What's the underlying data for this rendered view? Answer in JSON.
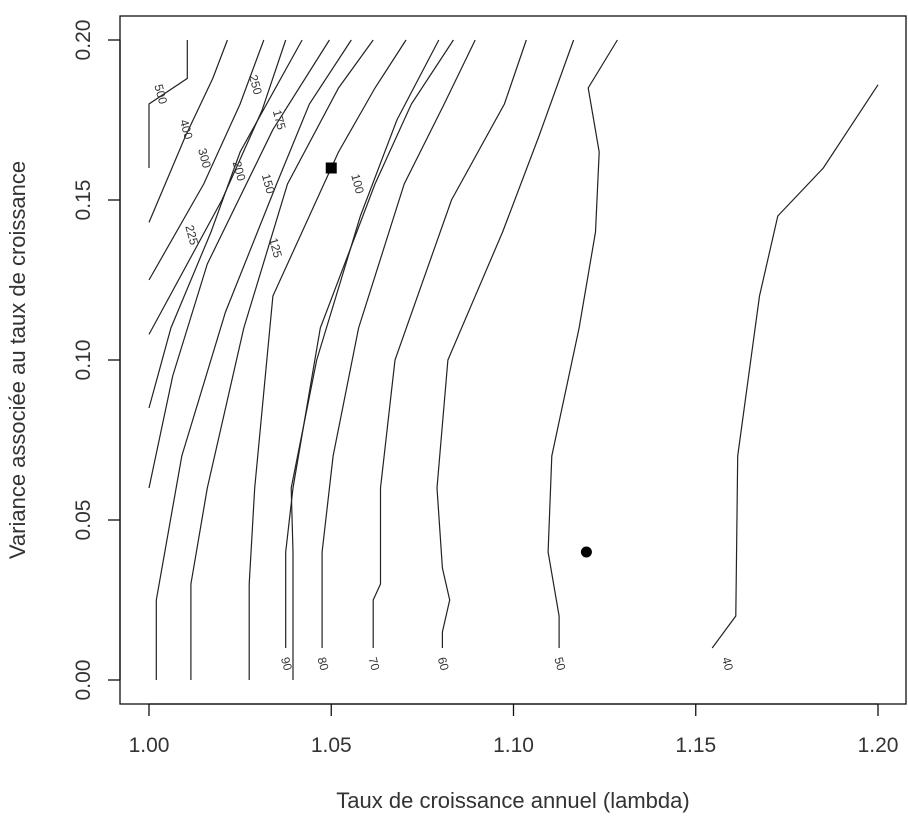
{
  "chart_data": {
    "type": "contour",
    "title": "",
    "xlabel": "Taux de croissance annuel (lambda)",
    "ylabel": "Variance associée au taux de croissance",
    "xlim": [
      0.99,
      1.21
    ],
    "ylim": [
      -0.009,
      0.209
    ],
    "x_ticks": [
      1.0,
      1.05,
      1.1,
      1.15,
      1.2
    ],
    "x_tick_labels": [
      "1.00",
      "1.05",
      "1.10",
      "1.15",
      "1.20"
    ],
    "y_ticks": [
      0.0,
      0.05,
      0.1,
      0.15,
      0.2
    ],
    "y_tick_labels": [
      "0.00",
      "0.05",
      "0.10",
      "0.15",
      "0.20"
    ],
    "contours": [
      {
        "level": 500,
        "label": "500",
        "points": [
          [
            1.0,
            0.16
          ],
          [
            1.0,
            0.18
          ],
          [
            1.0105,
            0.188
          ],
          [
            1.0105,
            0.2
          ]
        ],
        "label_at": [
          1.003,
          0.183
        ]
      },
      {
        "level": 400,
        "label": "400",
        "points": [
          [
            1.0,
            0.143
          ],
          [
            1.01,
            0.17
          ],
          [
            1.0175,
            0.188
          ],
          [
            1.0215,
            0.2
          ]
        ],
        "label_at": [
          1.01,
          0.172
        ]
      },
      {
        "level": 300,
        "label": "300",
        "points": [
          [
            1.0,
            0.125
          ],
          [
            1.015,
            0.155
          ],
          [
            1.025,
            0.18
          ],
          [
            1.0315,
            0.2
          ]
        ],
        "label_at": [
          1.015,
          0.163
        ]
      },
      {
        "level": 250,
        "label": "250",
        "points": [
          [
            1.0,
            0.108
          ],
          [
            1.02,
            0.15
          ],
          [
            1.031,
            0.178
          ],
          [
            1.0375,
            0.2
          ]
        ],
        "label_at": [
          1.029,
          0.186
        ]
      },
      {
        "level": 225,
        "label": "225",
        "points": [
          [
            1.0,
            0.085
          ],
          [
            1.006,
            0.11
          ],
          [
            1.017,
            0.14
          ],
          [
            1.025,
            0.165
          ],
          [
            1.042,
            0.2
          ]
        ],
        "label_at": [
          1.0115,
          0.139
        ]
      },
      {
        "level": 200,
        "label": "200",
        "points": [
          [
            1.0,
            0.06
          ],
          [
            1.0065,
            0.095
          ],
          [
            1.016,
            0.13
          ],
          [
            1.034,
            0.172
          ],
          [
            1.0495,
            0.2
          ]
        ],
        "label_at": [
          1.0245,
          0.159
        ]
      },
      {
        "level": 175,
        "label": "175",
        "points": [
          [
            1.002,
            0.0
          ],
          [
            1.002,
            0.025
          ],
          [
            1.009,
            0.07
          ],
          [
            1.021,
            0.115
          ],
          [
            1.035,
            0.155
          ],
          [
            1.044,
            0.18
          ],
          [
            1.0555,
            0.2
          ]
        ],
        "label_at": [
          1.0355,
          0.175
        ]
      },
      {
        "level": 150,
        "label": "150",
        "points": [
          [
            1.0115,
            0.0
          ],
          [
            1.0115,
            0.03
          ],
          [
            1.016,
            0.06
          ],
          [
            1.026,
            0.11
          ],
          [
            1.038,
            0.155
          ],
          [
            1.052,
            0.185
          ],
          [
            1.0615,
            0.2
          ]
        ],
        "label_at": [
          1.0325,
          0.155
        ]
      },
      {
        "level": 125,
        "label": "125",
        "points": [
          [
            1.0275,
            0.0
          ],
          [
            1.0275,
            0.03
          ],
          [
            1.029,
            0.06
          ],
          [
            1.034,
            0.12
          ],
          [
            1.052,
            0.165
          ],
          [
            1.062,
            0.185
          ],
          [
            1.0705,
            0.2
          ]
        ],
        "label_at": [
          1.0345,
          0.135
        ]
      },
      {
        "level": 100,
        "label": "100",
        "points": [
          [
            1.0395,
            0.0
          ],
          [
            1.0395,
            0.04
          ],
          [
            1.039,
            0.06
          ],
          [
            1.046,
            0.1
          ],
          [
            1.058,
            0.145
          ],
          [
            1.068,
            0.175
          ],
          [
            1.0795,
            0.2
          ]
        ],
        "label_at": [
          1.057,
          0.155
        ]
      },
      {
        "level": 90,
        "label": "90",
        "points": [
          [
            1.0375,
            0.01
          ],
          [
            1.0375,
            0.04
          ],
          [
            1.0395,
            0.06
          ],
          [
            1.047,
            0.11
          ],
          [
            1.062,
            0.155
          ],
          [
            1.072,
            0.18
          ],
          [
            1.0835,
            0.2
          ]
        ],
        "label_at": [
          1.0375,
          0.005
        ]
      },
      {
        "level": 80,
        "label": "80",
        "points": [
          [
            1.0475,
            0.01
          ],
          [
            1.0475,
            0.04
          ],
          [
            1.0505,
            0.07
          ],
          [
            1.0575,
            0.11
          ],
          [
            1.07,
            0.155
          ],
          [
            1.081,
            0.18
          ],
          [
            1.0895,
            0.2
          ]
        ],
        "label_at": [
          1.0475,
          0.005
        ]
      },
      {
        "level": 70,
        "label": "70",
        "points": [
          [
            1.0615,
            0.01
          ],
          [
            1.0615,
            0.025
          ],
          [
            1.0635,
            0.03
          ],
          [
            1.0635,
            0.06
          ],
          [
            1.0675,
            0.1
          ],
          [
            1.083,
            0.15
          ],
          [
            1.0975,
            0.18
          ],
          [
            1.1035,
            0.2
          ]
        ],
        "label_at": [
          1.0615,
          0.005
        ]
      },
      {
        "level": 60,
        "label": "60",
        "points": [
          [
            1.0805,
            0.01
          ],
          [
            1.0805,
            0.015
          ],
          [
            1.0825,
            0.025
          ],
          [
            1.0805,
            0.035
          ],
          [
            1.079,
            0.06
          ],
          [
            1.082,
            0.1
          ],
          [
            1.097,
            0.14
          ],
          [
            1.107,
            0.17
          ],
          [
            1.1165,
            0.2
          ]
        ],
        "label_at": [
          1.0805,
          0.005
        ]
      },
      {
        "level": 50,
        "label": "50",
        "points": [
          [
            1.1125,
            0.01
          ],
          [
            1.1125,
            0.02
          ],
          [
            1.1095,
            0.04
          ],
          [
            1.1105,
            0.07
          ],
          [
            1.118,
            0.11
          ],
          [
            1.1225,
            0.14
          ],
          [
            1.1235,
            0.165
          ],
          [
            1.1205,
            0.185
          ],
          [
            1.1285,
            0.2
          ]
        ],
        "label_at": [
          1.1125,
          0.005
        ]
      },
      {
        "level": 40,
        "label": "40",
        "points": [
          [
            1.1545,
            0.01
          ],
          [
            1.161,
            0.02
          ],
          [
            1.1615,
            0.07
          ],
          [
            1.1675,
            0.12
          ],
          [
            1.1725,
            0.145
          ],
          [
            1.185,
            0.16
          ],
          [
            1.2,
            0.186
          ]
        ],
        "label_at": [
          1.1585,
          0.005
        ]
      }
    ],
    "markers": [
      {
        "shape": "square",
        "x": 1.05,
        "y": 0.16
      },
      {
        "shape": "circle",
        "x": 1.12,
        "y": 0.04
      }
    ]
  }
}
